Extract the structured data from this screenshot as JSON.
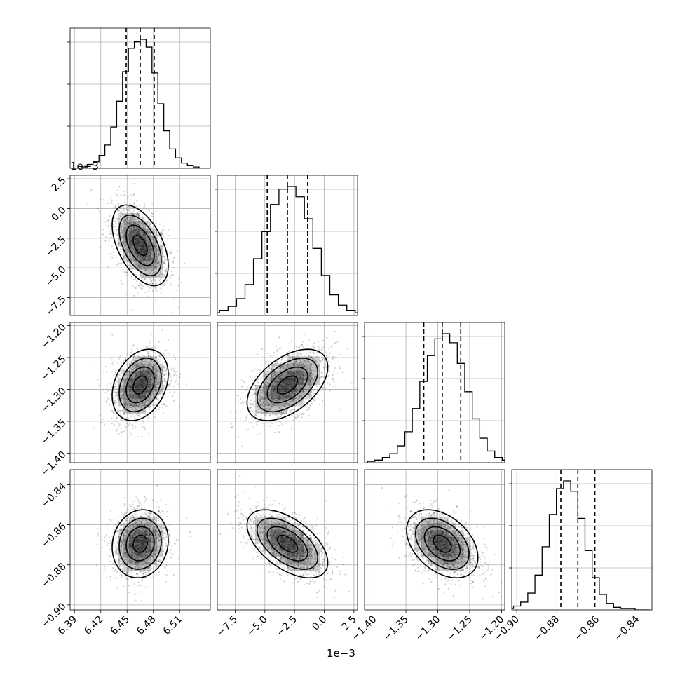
{
  "chart_data": {
    "type": "corner",
    "grid": true,
    "quantile_lines": "dashed",
    "parameters": [
      {
        "mean": 6.465,
        "sd": 0.016,
        "range": [
          6.385,
          6.545
        ],
        "ticks": [
          6.39,
          6.42,
          6.45,
          6.48,
          6.51
        ],
        "tick_labels": [
          "6.39",
          "6.42",
          "6.45",
          "6.48",
          "6.51"
        ],
        "quantiles": [
          6.449,
          6.465,
          6.481
        ]
      },
      {
        "mean": -3.1,
        "sd": 1.7,
        "range": [
          -9.0,
          2.8
        ],
        "ticks": [
          -7.5,
          -5.0,
          -2.5,
          0.0,
          2.5
        ],
        "tick_labels": [
          "−7.5",
          "−5.0",
          "−2.5",
          "0.0",
          "2.5"
        ],
        "quantiles": [
          -4.8,
          -3.1,
          -1.4
        ]
      },
      {
        "mean": -1.293,
        "sd": 0.028,
        "range": [
          -1.415,
          -1.195
        ],
        "ticks": [
          -1.4,
          -1.35,
          -1.3,
          -1.25,
          -1.2
        ],
        "tick_labels": [
          "−1.40",
          "−1.35",
          "−1.30",
          "−1.25",
          "−1.20"
        ],
        "quantiles": [
          -1.322,
          -1.293,
          -1.264
        ]
      },
      {
        "mean": -0.8695,
        "sd": 0.0085,
        "range": [
          -0.9025,
          -0.8325
        ],
        "ticks": [
          -0.9,
          -0.88,
          -0.86,
          -0.84
        ],
        "tick_labels": [
          "−0.90",
          "−0.88",
          "−0.86",
          "−0.84"
        ],
        "quantiles": [
          -0.878,
          -0.8695,
          -0.861
        ]
      }
    ],
    "correlations": [
      {
        "pair": [
          0,
          1
        ],
        "rho": -0.5
      },
      {
        "pair": [
          0,
          2
        ],
        "rho": 0.3
      },
      {
        "pair": [
          1,
          2
        ],
        "rho": 0.5
      },
      {
        "pair": [
          0,
          3
        ],
        "rho": 0.1
      },
      {
        "pair": [
          1,
          3
        ],
        "rho": -0.55
      },
      {
        "pair": [
          2,
          3
        ],
        "rho": -0.4
      }
    ],
    "histograms": [
      [
        0.01,
        0.03,
        0.05,
        0.1,
        0.18,
        0.32,
        0.52,
        0.75,
        0.93,
        0.98,
        1.0,
        0.94,
        0.74,
        0.5,
        0.29,
        0.15,
        0.08,
        0.04,
        0.02,
        0.01
      ],
      [
        0.01,
        0.02,
        0.04,
        0.07,
        0.13,
        0.24,
        0.44,
        0.65,
        0.86,
        0.98,
        1.0,
        0.92,
        0.75,
        0.52,
        0.31,
        0.16,
        0.08,
        0.04,
        0.02,
        0.01
      ],
      [
        0.01,
        0.02,
        0.04,
        0.07,
        0.13,
        0.24,
        0.42,
        0.63,
        0.83,
        0.96,
        1.0,
        0.93,
        0.77,
        0.55,
        0.34,
        0.19,
        0.09,
        0.04,
        0.02,
        0.01
      ],
      [
        0.01,
        0.03,
        0.06,
        0.13,
        0.27,
        0.49,
        0.74,
        0.94,
        1.0,
        0.92,
        0.71,
        0.46,
        0.25,
        0.12,
        0.05,
        0.02,
        0.01,
        0.01,
        0.0,
        0.0
      ]
    ],
    "offset_labels": {
      "param_1_y": "1e−3",
      "param_1_x": "1e−3"
    }
  }
}
